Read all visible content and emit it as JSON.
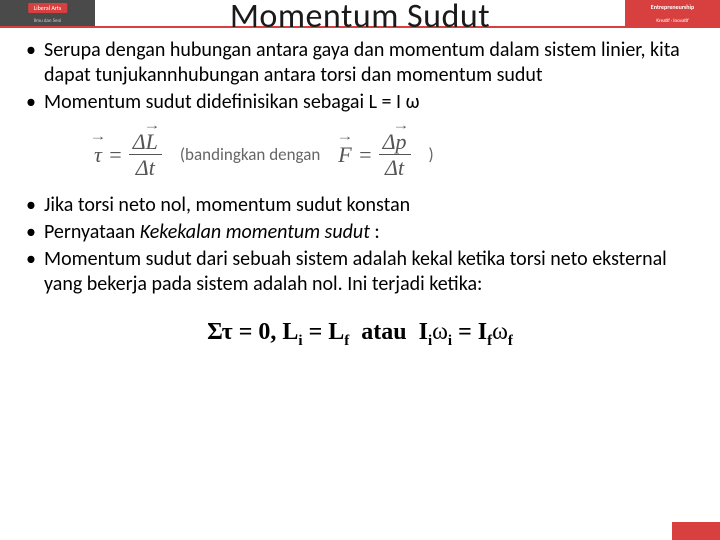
{
  "header": {
    "left_badge": "Liberal Arts",
    "left_sub": "Ilmu dan Seni",
    "right_badge": "Entrepreneurship",
    "right_sub": "Kreatif · Inovatif"
  },
  "title": "Momentum Sudut",
  "bullets_top": [
    "Serupa dengan hubungan antara gaya dan momentum dalam sistem linier, kita dapat tunjukannhubungan antara torsi dan momentum sudut",
    "Momentum sudut didefinisikan sebagai L = I ω"
  ],
  "formula1": {
    "lhs_symbol": "τ",
    "num_delta": "Δ",
    "num_symbol": "L",
    "den_delta": "Δ",
    "den_symbol": "t",
    "compare_text": "(bandingkan dengan",
    "rhs_lhs": "F",
    "rhs_num_delta": "Δ",
    "rhs_num_symbol": "p",
    "rhs_den_delta": "Δ",
    "rhs_den_symbol": "t",
    "close": ")"
  },
  "bullets_bottom": [
    "Jika torsi neto nol, momentum sudut konstan",
    "Pernyataan Kekekalan momentum sudut :",
    "Momentum sudut dari sebuah sistem adalah kekal ketika torsi neto eksternal yang bekerja pada sistem adalah nol. Ini terjadi ketika:"
  ],
  "formula2": {
    "text": "Στ = 0, L<sub>i</sub> = L<sub>f</sub> atau I<sub>i</sub>ω<sub>i</sub> = I<sub>f</sub>ω<sub>f</sub>"
  }
}
